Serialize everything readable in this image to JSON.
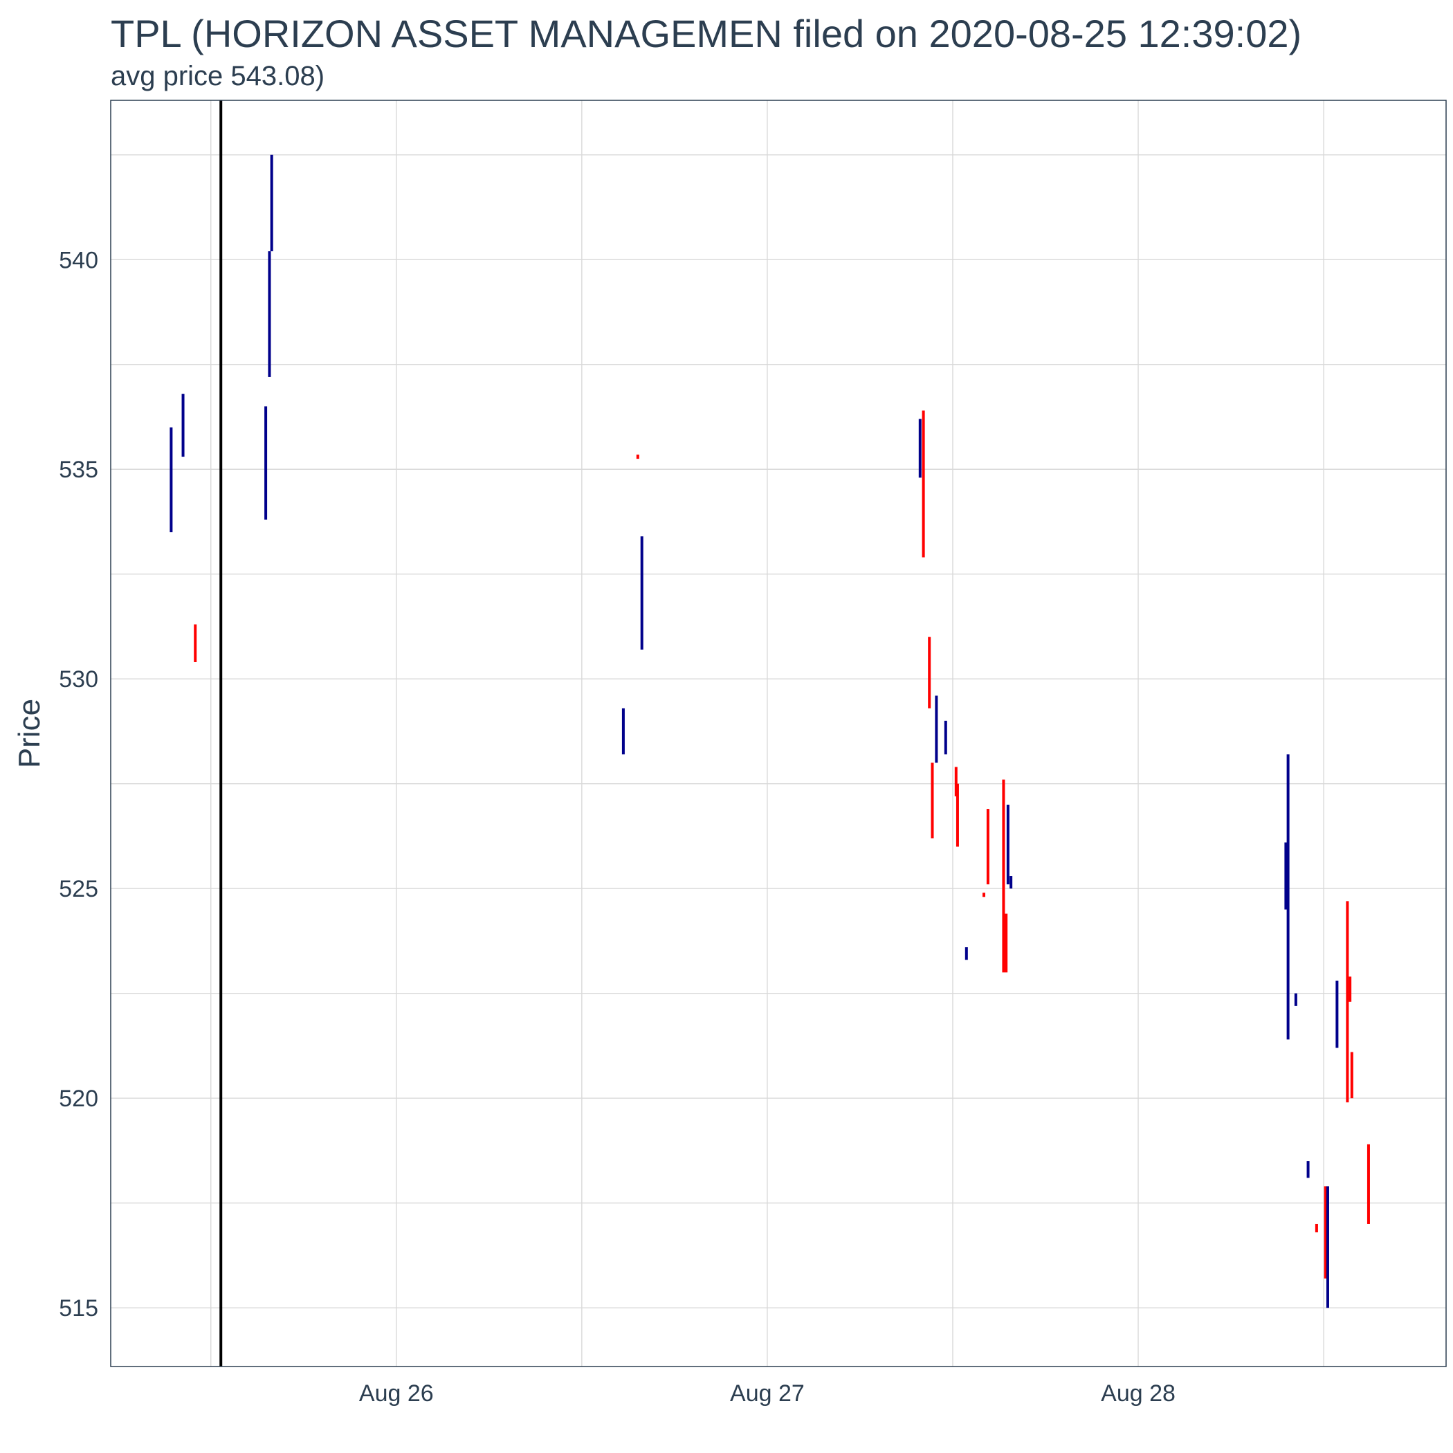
{
  "chart_data": {
    "type": "candlestick",
    "title": "TPL (HORIZON ASSET MANAGEMEN filed on 2020-08-25 12:39:02)",
    "subtitle": "avg price 543.08)",
    "xlabel": "",
    "ylabel": "Price",
    "x_ticks": [
      {
        "label": "Aug 26",
        "day": 26
      },
      {
        "label": "Aug 27",
        "day": 27
      },
      {
        "label": "Aug 28",
        "day": 28
      }
    ],
    "xlim_days": [
      25.23,
      28.83
    ],
    "y_ticks": [
      515,
      520,
      525,
      530,
      535,
      540
    ],
    "ylim": [
      513.6,
      543.8
    ],
    "grid": true,
    "filing_day": 25.527,
    "colors": {
      "up": "#00008b",
      "down": "#ff0000",
      "filing_line": "#000000",
      "grid": "#d9d9d9",
      "border": "#2c3e50"
    },
    "candles": [
      {
        "day": 25.393,
        "low": 533.5,
        "high": 536.0,
        "dir": "up"
      },
      {
        "day": 25.425,
        "low": 535.3,
        "high": 536.8,
        "dir": "up"
      },
      {
        "day": 25.458,
        "low": 530.4,
        "high": 531.3,
        "dir": "down"
      },
      {
        "day": 25.648,
        "low": 533.8,
        "high": 536.5,
        "dir": "up"
      },
      {
        "day": 25.658,
        "low": 537.2,
        "high": 540.2,
        "dir": "up"
      },
      {
        "day": 25.664,
        "low": 540.2,
        "high": 542.5,
        "dir": "up"
      },
      {
        "day": 26.612,
        "low": 528.2,
        "high": 529.3,
        "dir": "up"
      },
      {
        "day": 26.651,
        "low": 535.25,
        "high": 535.35,
        "dir": "down"
      },
      {
        "day": 26.662,
        "low": 530.7,
        "high": 533.4,
        "dir": "up"
      },
      {
        "day": 27.412,
        "low": 534.8,
        "high": 536.2,
        "dir": "up"
      },
      {
        "day": 27.421,
        "low": 532.9,
        "high": 536.4,
        "dir": "down"
      },
      {
        "day": 27.437,
        "low": 529.3,
        "high": 531.0,
        "dir": "down"
      },
      {
        "day": 27.445,
        "low": 526.2,
        "high": 528.0,
        "dir": "down"
      },
      {
        "day": 27.456,
        "low": 528.0,
        "high": 529.6,
        "dir": "up"
      },
      {
        "day": 27.481,
        "low": 528.2,
        "high": 529.0,
        "dir": "up"
      },
      {
        "day": 27.509,
        "low": 527.2,
        "high": 527.9,
        "dir": "down"
      },
      {
        "day": 27.513,
        "low": 526.0,
        "high": 527.5,
        "dir": "down"
      },
      {
        "day": 27.537,
        "low": 523.3,
        "high": 523.6,
        "dir": "up"
      },
      {
        "day": 27.584,
        "low": 524.8,
        "high": 524.9,
        "dir": "down"
      },
      {
        "day": 27.595,
        "low": 525.1,
        "high": 526.9,
        "dir": "down"
      },
      {
        "day": 27.637,
        "low": 523.0,
        "high": 527.6,
        "dir": "down"
      },
      {
        "day": 27.644,
        "low": 523.0,
        "high": 524.4,
        "dir": "down"
      },
      {
        "day": 27.649,
        "low": 525.1,
        "high": 527.0,
        "dir": "up"
      },
      {
        "day": 27.657,
        "low": 525.0,
        "high": 525.3,
        "dir": "up"
      },
      {
        "day": 28.398,
        "low": 524.5,
        "high": 526.1,
        "dir": "up"
      },
      {
        "day": 28.404,
        "low": 521.4,
        "high": 528.2,
        "dir": "up"
      },
      {
        "day": 28.425,
        "low": 522.2,
        "high": 522.5,
        "dir": "up"
      },
      {
        "day": 28.458,
        "low": 518.1,
        "high": 518.5,
        "dir": "up"
      },
      {
        "day": 28.481,
        "low": 516.8,
        "high": 517.0,
        "dir": "down"
      },
      {
        "day": 28.505,
        "low": 515.7,
        "high": 517.9,
        "dir": "down"
      },
      {
        "day": 28.511,
        "low": 515.0,
        "high": 517.9,
        "dir": "up"
      },
      {
        "day": 28.536,
        "low": 521.2,
        "high": 522.8,
        "dir": "up"
      },
      {
        "day": 28.564,
        "low": 519.9,
        "high": 524.7,
        "dir": "down"
      },
      {
        "day": 28.571,
        "low": 522.3,
        "high": 522.9,
        "dir": "down"
      },
      {
        "day": 28.576,
        "low": 520.0,
        "high": 521.1,
        "dir": "down"
      },
      {
        "day": 28.621,
        "low": 517.0,
        "high": 518.9,
        "dir": "down"
      }
    ]
  }
}
